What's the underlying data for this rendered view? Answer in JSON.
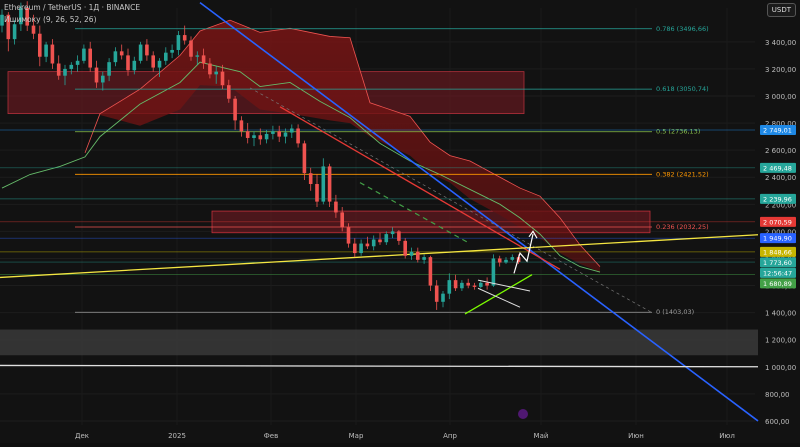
{
  "header": {
    "symbol": "Ethereum / TetherUS · 1Д · BINANCE",
    "indicator": "Ишимоку (9, 26, 52, 26)",
    "currency": "USDT"
  },
  "colors": {
    "background": "#121212",
    "up": "#26a69a",
    "down": "#ef5350",
    "cloud_bear": "#8b1a1a",
    "trend_blue": "#2962ff",
    "trend_red": "#e53935",
    "trend_yellow": "#f5e642",
    "green_line": "#4caf50"
  },
  "chart_data": {
    "type": "candlestick",
    "x_ticks": [
      "Дек",
      "2025",
      "Фев",
      "Мар",
      "Апр",
      "Май",
      "Июн",
      "Июл"
    ],
    "y_ticks": [
      "3 400,00",
      "3 200,00",
      "3 000,00",
      "2 800,00",
      "2 600,00",
      "2 400,00",
      "2 200,00",
      "2 000,00",
      "1 800,00",
      "1 600,00",
      "1 400,00",
      "1 200,00",
      "1 000,00",
      "800,00",
      "600,00"
    ],
    "y_range": [
      570,
      3650
    ],
    "price_tags": [
      {
        "value": 2749.01,
        "label": "2 749,01",
        "color": "#1e88e5"
      },
      {
        "value": 2469.48,
        "label": "2 469,48",
        "color": "#26a69a"
      },
      {
        "value": 2239.96,
        "label": "2 239,96",
        "color": "#26a69a"
      },
      {
        "value": 2070.59,
        "label": "2 070,59",
        "color": "#e53935"
      },
      {
        "value": 1949.9,
        "label": "1 949,90",
        "color": "#2962ff"
      },
      {
        "value": 1848.66,
        "label": "1 848,66",
        "color": "#c6b500"
      },
      {
        "value": 1773.6,
        "label": "1 773,60",
        "color": "#26a69a"
      },
      {
        "value": 1722,
        "label": "12:56:47",
        "color": "#26a69a"
      },
      {
        "value": 1680.89,
        "label": "1 680,89",
        "color": "#43a047"
      }
    ],
    "fib_levels": [
      {
        "ratio": "0.786",
        "label": "0.786 (3496,66)",
        "value": 3496.66,
        "color": "#26a69a"
      },
      {
        "ratio": "0.618",
        "label": "0.618 (3050,74)",
        "value": 3050.74,
        "color": "#26a69a"
      },
      {
        "ratio": "0.5",
        "label": "0.5 (2736,13)",
        "value": 2736.13,
        "color": "#8bc34a"
      },
      {
        "ratio": "0.382",
        "label": "0.382 (2421,52)",
        "value": 2421.52,
        "color": "#ff9800"
      },
      {
        "ratio": "0.236",
        "label": "0.236 (2032,25)",
        "value": 2032.25,
        "color": "#ef5350"
      },
      {
        "ratio": "0",
        "label": "0 (1403,03)",
        "value": 1403.03,
        "color": "#9e9e9e"
      }
    ],
    "candles": [
      [
        "Ноя 28",
        3520,
        3640,
        3470,
        3600
      ],
      [
        "Ноя 29",
        3600,
        3620,
        3330,
        3420
      ],
      [
        "Ноя 30",
        3420,
        3560,
        3380,
        3530
      ],
      [
        "Дек 2",
        3530,
        3690,
        3480,
        3650
      ],
      [
        "Дек 3",
        3650,
        3700,
        3480,
        3520
      ],
      [
        "Дек 4",
        3520,
        3600,
        3420,
        3460
      ],
      [
        "Дек 5",
        3460,
        3520,
        3220,
        3290
      ],
      [
        "Дек 6",
        3290,
        3400,
        3250,
        3380
      ],
      [
        "Дек 8",
        3380,
        3420,
        3200,
        3240
      ],
      [
        "Дек 9",
        3240,
        3300,
        3120,
        3150
      ],
      [
        "Дек 10",
        3150,
        3230,
        3080,
        3200
      ],
      [
        "Дек 12",
        3200,
        3250,
        3160,
        3230
      ],
      [
        "Дек 14",
        3230,
        3300,
        3180,
        3260
      ],
      [
        "Дек 16",
        3260,
        3380,
        3240,
        3350
      ],
      [
        "Дек 18",
        3350,
        3400,
        3180,
        3210
      ],
      [
        "Дек 20",
        3210,
        3260,
        3060,
        3100
      ],
      [
        "Дек 22",
        3100,
        3180,
        3040,
        3150
      ],
      [
        "Дек 24",
        3150,
        3280,
        3110,
        3250
      ],
      [
        "Дек 26",
        3250,
        3360,
        3220,
        3330
      ],
      [
        "Дек 28",
        3330,
        3380,
        3270,
        3300
      ],
      [
        "Дек 30",
        3300,
        3350,
        3150,
        3190
      ],
      [
        "Янв 2",
        3190,
        3290,
        3160,
        3260
      ],
      [
        "Янв 4",
        3260,
        3400,
        3240,
        3380
      ],
      [
        "Янв 6",
        3380,
        3420,
        3260,
        3300
      ],
      [
        "Янв 8",
        3300,
        3330,
        3180,
        3210
      ],
      [
        "Янв 10",
        3210,
        3280,
        3140,
        3260
      ],
      [
        "Янв 12",
        3260,
        3360,
        3230,
        3320
      ],
      [
        "Янв 14",
        3320,
        3380,
        3280,
        3340
      ],
      [
        "Янв 16",
        3340,
        3480,
        3300,
        3450
      ],
      [
        "Янв 18",
        3450,
        3520,
        3380,
        3410
      ],
      [
        "Янв 20",
        3410,
        3440,
        3260,
        3290
      ],
      [
        "Янв 22",
        3290,
        3330,
        3230,
        3300
      ],
      [
        "Янв 24",
        3300,
        3350,
        3200,
        3240
      ],
      [
        "Янв 26",
        3240,
        3280,
        3130,
        3160
      ],
      [
        "Янв 28",
        3160,
        3220,
        3090,
        3180
      ],
      [
        "Янв 30",
        3180,
        3230,
        3050,
        3080
      ],
      [
        "Фев 1",
        3080,
        3120,
        2950,
        2980
      ],
      [
        "Фев 3",
        2980,
        3000,
        2750,
        2820
      ],
      [
        "Фев 5",
        2820,
        2850,
        2700,
        2740
      ],
      [
        "Фев 7",
        2740,
        2800,
        2650,
        2690
      ],
      [
        "Фев 9",
        2690,
        2740,
        2630,
        2710
      ],
      [
        "Фев 11",
        2710,
        2760,
        2640,
        2680
      ],
      [
        "Фев 13",
        2680,
        2750,
        2650,
        2720
      ],
      [
        "Фев 15",
        2720,
        2780,
        2680,
        2740
      ],
      [
        "Фев 17",
        2740,
        2780,
        2660,
        2700
      ],
      [
        "Фев 19",
        2700,
        2760,
        2650,
        2730
      ],
      [
        "Фев 21",
        2730,
        2790,
        2690,
        2760
      ],
      [
        "Фев 23",
        2760,
        2790,
        2620,
        2650
      ],
      [
        "Фев 25",
        2650,
        2670,
        2380,
        2430
      ],
      [
        "Фев 27",
        2430,
        2470,
        2300,
        2350
      ],
      [
        "Мар 1",
        2350,
        2420,
        2180,
        2220
      ],
      [
        "Мар 3",
        2220,
        2540,
        2200,
        2480
      ],
      [
        "Мар 5",
        2480,
        2500,
        2180,
        2220
      ],
      [
        "Мар 7",
        2220,
        2270,
        2100,
        2140
      ],
      [
        "Мар 9",
        2140,
        2180,
        2000,
        2030
      ],
      [
        "Мар 11",
        2030,
        2060,
        1880,
        1910
      ],
      [
        "Мар 13",
        1910,
        1950,
        1810,
        1840
      ],
      [
        "Мар 15",
        1840,
        1940,
        1820,
        1910
      ],
      [
        "Мар 17",
        1910,
        1960,
        1870,
        1890
      ],
      [
        "Мар 19",
        1890,
        1970,
        1860,
        1940
      ],
      [
        "Мар 21",
        1940,
        1990,
        1900,
        1920
      ],
      [
        "Мар 23",
        1920,
        2000,
        1900,
        1980
      ],
      [
        "Мар 25",
        1980,
        2030,
        1950,
        2000
      ],
      [
        "Мар 27",
        2000,
        2010,
        1900,
        1930
      ],
      [
        "Мар 29",
        1930,
        1950,
        1800,
        1820
      ],
      [
        "Мар 31",
        1820,
        1880,
        1790,
        1850
      ],
      [
        "Апр 2",
        1850,
        1880,
        1770,
        1790
      ],
      [
        "Апр 4",
        1790,
        1830,
        1760,
        1810
      ],
      [
        "Апр 6",
        1810,
        1820,
        1560,
        1600
      ],
      [
        "Апр 7",
        1600,
        1640,
        1420,
        1480
      ],
      [
        "Апр 8",
        1480,
        1560,
        1440,
        1540
      ],
      [
        "Апр 9",
        1540,
        1690,
        1500,
        1640
      ],
      [
        "Апр 11",
        1640,
        1680,
        1560,
        1580
      ],
      [
        "Апр 13",
        1580,
        1640,
        1560,
        1620
      ],
      [
        "Апр 15",
        1620,
        1650,
        1580,
        1600
      ],
      [
        "Апр 17",
        1600,
        1620,
        1570,
        1590
      ],
      [
        "Апр 19",
        1590,
        1640,
        1580,
        1620
      ],
      [
        "Апр 21",
        1620,
        1660,
        1570,
        1600
      ],
      [
        "Апр 23",
        1600,
        1830,
        1590,
        1800
      ],
      [
        "Апр 25",
        1800,
        1820,
        1740,
        1770
      ],
      [
        "Апр 27",
        1770,
        1810,
        1760,
        1790
      ],
      [
        "Апр 29",
        1790,
        1830,
        1780,
        1810
      ],
      [
        "Май 1",
        1810,
        1830,
        1760,
        1773.6
      ]
    ]
  }
}
